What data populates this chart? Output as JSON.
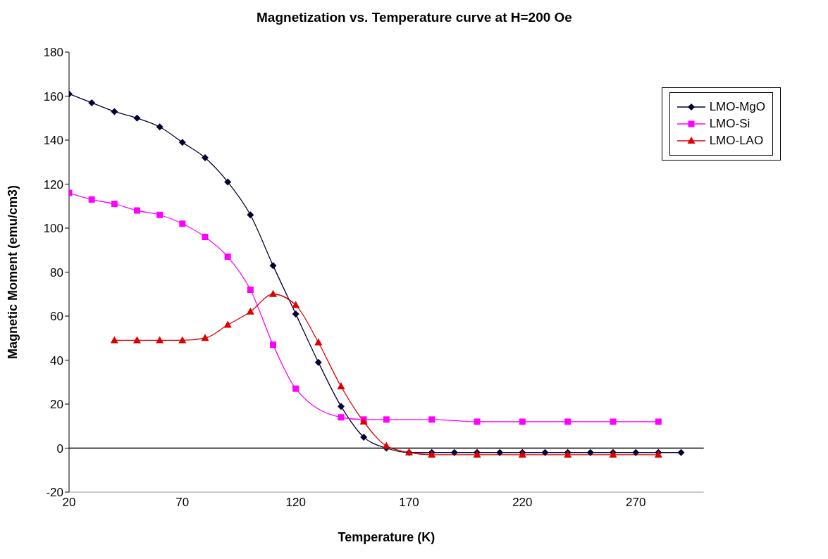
{
  "chart_data": {
    "type": "line",
    "title": "Magnetization vs. Temperature curve at H=200 Oe",
    "xlabel": "Temperature (K)",
    "ylabel": "Magnetic Moment (emu/cm3)",
    "xlim": [
      20,
      300
    ],
    "xticks": [
      20,
      70,
      120,
      170,
      220,
      270
    ],
    "ylim": [
      -20,
      180
    ],
    "yticks": [
      -20,
      0,
      20,
      40,
      60,
      80,
      100,
      120,
      140,
      160,
      180
    ],
    "grid": false,
    "legend": "top right",
    "ref_lines": [
      {
        "axis": "y",
        "value": 0,
        "color": "#000000"
      }
    ],
    "series": [
      {
        "name": "LMO-MgO",
        "color": "#000033",
        "marker": "diamond",
        "x": [
          20,
          30,
          40,
          50,
          60,
          70,
          80,
          90,
          100,
          110,
          120,
          130,
          140,
          150,
          160,
          170,
          180,
          190,
          200,
          210,
          220,
          230,
          240,
          250,
          260,
          270,
          280,
          290
        ],
        "values": [
          161,
          157,
          153,
          150,
          146,
          139,
          132,
          121,
          106,
          83,
          61,
          39,
          19,
          5,
          0,
          -2,
          -2,
          -2,
          -2,
          -2,
          -2,
          -2,
          -2,
          -2,
          -2,
          -2,
          -2,
          -2
        ]
      },
      {
        "name": "LMO-Si",
        "color": "#ff00ff",
        "marker": "square",
        "x": [
          20,
          30,
          40,
          50,
          60,
          70,
          80,
          90,
          100,
          110,
          120,
          140,
          150,
          160,
          180,
          200,
          220,
          240,
          260,
          280
        ],
        "values": [
          116,
          113,
          111,
          108,
          106,
          102,
          96,
          87,
          72,
          47,
          27,
          14,
          13,
          13,
          13,
          12,
          12,
          12,
          12,
          12
        ]
      },
      {
        "name": "LMO-LAO",
        "color": "#dd0000",
        "marker": "triangle",
        "x": [
          40,
          50,
          60,
          70,
          80,
          90,
          100,
          110,
          120,
          130,
          140,
          150,
          160,
          170,
          180,
          200,
          220,
          240,
          260,
          280
        ],
        "values": [
          49,
          49,
          49,
          49,
          50,
          56,
          62,
          70,
          65,
          48,
          28,
          12,
          1,
          -2,
          -3,
          -3,
          -3,
          -3,
          -3,
          -3
        ]
      }
    ]
  }
}
